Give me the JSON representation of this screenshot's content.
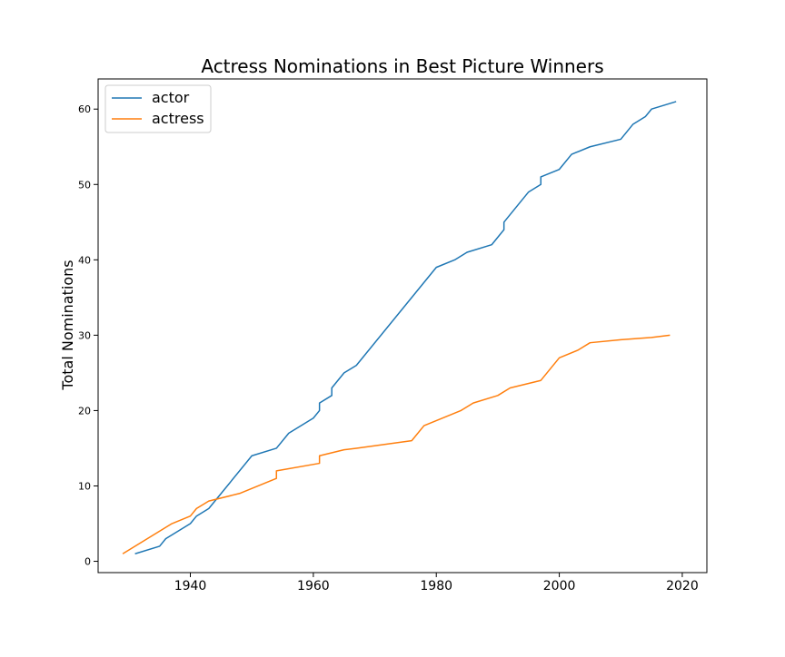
{
  "chart_data": {
    "type": "line",
    "title": "Actress Nominations in Best Picture Winners",
    "xlabel": "",
    "ylabel": "Total Nominations",
    "xlim": [
      1925,
      2024
    ],
    "ylim": [
      -1.5,
      64
    ],
    "xticks": [
      1940,
      1960,
      1980,
      2000,
      2020
    ],
    "yticks": [
      0,
      10,
      20,
      30,
      40,
      50,
      60
    ],
    "grid": false,
    "legend_position": "upper-left",
    "series": [
      {
        "name": "actor",
        "color": "#1f77b4",
        "points": [
          [
            1931,
            1
          ],
          [
            1935,
            2
          ],
          [
            1936,
            3
          ],
          [
            1940,
            5
          ],
          [
            1941,
            6
          ],
          [
            1943,
            7
          ],
          [
            1950,
            14
          ],
          [
            1954,
            15
          ],
          [
            1956,
            17
          ],
          [
            1960,
            19
          ],
          [
            1961,
            20
          ],
          [
            1961,
            21
          ],
          [
            1963,
            22
          ],
          [
            1963,
            23
          ],
          [
            1965,
            25
          ],
          [
            1967,
            26
          ],
          [
            1980,
            39
          ],
          [
            1983,
            40
          ],
          [
            1985,
            41
          ],
          [
            1989,
            42
          ],
          [
            1991,
            44
          ],
          [
            1991,
            45
          ],
          [
            1995,
            49
          ],
          [
            1997,
            50
          ],
          [
            1997,
            51
          ],
          [
            2000,
            52
          ],
          [
            2002,
            54
          ],
          [
            2005,
            55
          ],
          [
            2010,
            56
          ],
          [
            2012,
            58
          ],
          [
            2014,
            59
          ],
          [
            2015,
            60
          ],
          [
            2019,
            61
          ]
        ]
      },
      {
        "name": "actress",
        "color": "#ff7f0e",
        "points": [
          [
            1929,
            1
          ],
          [
            1937,
            5
          ],
          [
            1940,
            6
          ],
          [
            1941,
            7
          ],
          [
            1943,
            8
          ],
          [
            1948,
            9
          ],
          [
            1954,
            11
          ],
          [
            1954,
            12
          ],
          [
            1961,
            13
          ],
          [
            1961,
            14
          ],
          [
            1965,
            14.8
          ],
          [
            1967,
            15
          ],
          [
            1976,
            16
          ],
          [
            1978,
            18
          ],
          [
            1984,
            20
          ],
          [
            1986,
            21
          ],
          [
            1990,
            22
          ],
          [
            1992,
            23
          ],
          [
            1997,
            24
          ],
          [
            2000,
            27
          ],
          [
            2003,
            28
          ],
          [
            2005,
            29
          ],
          [
            2010,
            29.4
          ],
          [
            2015,
            29.7
          ],
          [
            2018,
            30
          ]
        ]
      }
    ]
  }
}
